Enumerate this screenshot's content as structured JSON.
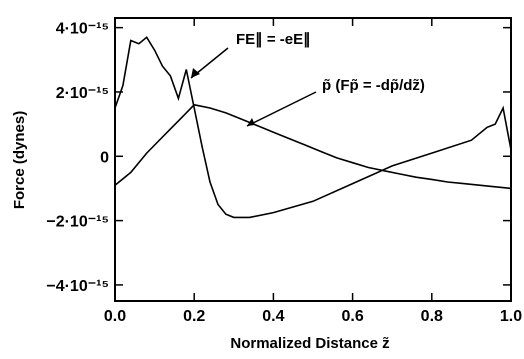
{
  "chart_data": {
    "type": "line",
    "title": "",
    "xlabel": "Normalized Distance  z̃",
    "ylabel": "Force (dynes)",
    "xlim": [
      0.0,
      1.0
    ],
    "ylim": [
      -4.5e-15,
      4.3e-15
    ],
    "x_ticks": [
      0.0,
      0.2,
      0.4,
      0.6,
      0.8,
      1.0
    ],
    "x_tick_labels": [
      "0.0",
      "0.2",
      "0.4",
      "0.6",
      "0.8",
      "1.0"
    ],
    "y_ticks": [
      4e-15,
      2e-15,
      0,
      -2e-15,
      -4e-15
    ],
    "y_tick_labels": [
      "4·10⁻¹⁵",
      "2·10⁻¹⁵",
      "0",
      "−2·10⁻¹⁵",
      "−4·10⁻¹⁵"
    ],
    "grid": false,
    "legend": "none",
    "annotations": [
      {
        "text": "FE∥ = -eE∥",
        "target": "F_E"
      },
      {
        "text": "p̃ (Fp̃ = -dp̃/dz̃)",
        "target": "F_p"
      }
    ],
    "series": [
      {
        "id": "F_E",
        "x": [
          0.0,
          0.02,
          0.04,
          0.06,
          0.08,
          0.1,
          0.12,
          0.14,
          0.16,
          0.18,
          0.2,
          0.22,
          0.24,
          0.26,
          0.28,
          0.3,
          0.34,
          0.4,
          0.5,
          0.6,
          0.7,
          0.8,
          0.9,
          0.94,
          0.96,
          0.98,
          1.0
        ],
        "y": [
          1.5e-15,
          2.2e-15,
          3.6e-15,
          3.5e-15,
          3.7e-15,
          3.3e-15,
          2.8e-15,
          2.5e-15,
          1.8e-15,
          2.7e-15,
          1.5e-15,
          3e-16,
          -8e-16,
          -1.5e-15,
          -1.8e-15,
          -1.9e-15,
          -1.9e-15,
          -1.75e-15,
          -1.4e-15,
          -8.5e-16,
          -3e-16,
          1e-16,
          5e-16,
          9e-16,
          1e-15,
          1.5e-15,
          2e-16
        ]
      },
      {
        "id": "F_p",
        "x": [
          0.0,
          0.04,
          0.08,
          0.12,
          0.16,
          0.2,
          0.24,
          0.28,
          0.32,
          0.36,
          0.4,
          0.44,
          0.48,
          0.52,
          0.56,
          0.6,
          0.64,
          0.68,
          0.72,
          0.76,
          0.8,
          0.84,
          0.88,
          0.92,
          0.96,
          1.0
        ],
        "y": [
          -9e-16,
          -5e-16,
          1e-16,
          6e-16,
          1.1e-15,
          1.6e-15,
          1.5e-15,
          1.35e-15,
          1.15e-15,
          9.5e-16,
          7.5e-16,
          5.5e-16,
          3.5e-16,
          1.5e-16,
          -5e-17,
          -2e-16,
          -3.5e-16,
          -4.5e-16,
          -5.5e-16,
          -6.5e-16,
          -7.2e-16,
          -8e-16,
          -8.5e-16,
          -9e-16,
          -9.5e-16,
          -1e-15
        ]
      }
    ]
  }
}
